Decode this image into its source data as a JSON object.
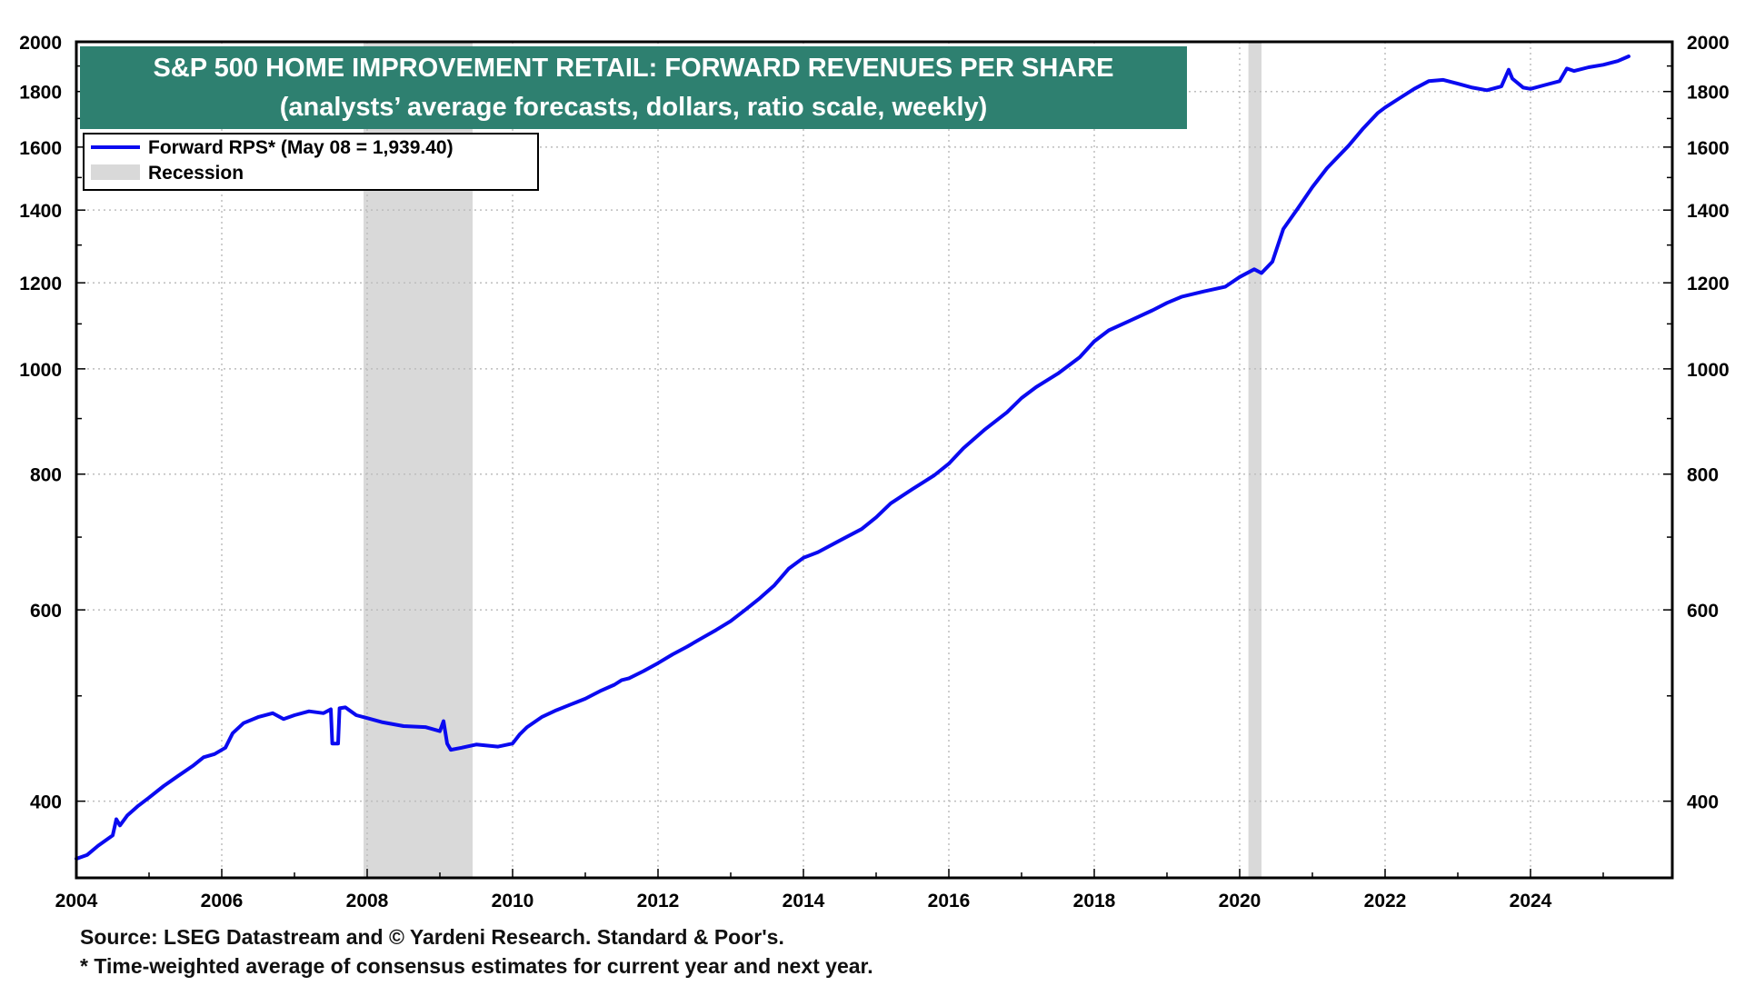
{
  "chart_data": {
    "type": "line",
    "title": "S&P 500 HOME IMPROVEMENT RETAIL: FORWARD REVENUES PER SHARE",
    "subtitle": "(analysts’ average forecasts, dollars, ratio scale, weekly)",
    "y_scale": "log",
    "ylim": [
      340,
      2000
    ],
    "xlim": [
      2004.0,
      2025.95
    ],
    "y_ticks": [
      {
        "value": 400,
        "label": "400"
      },
      {
        "value": 600,
        "label": "600"
      },
      {
        "value": 800,
        "label": "800"
      },
      {
        "value": 1000,
        "label": "1000"
      },
      {
        "value": 1200,
        "label": "1200"
      },
      {
        "value": 1400,
        "label": "1400"
      },
      {
        "value": 1600,
        "label": "1600"
      },
      {
        "value": 1800,
        "label": "1800"
      },
      {
        "value": 2000,
        "label": "2000"
      }
    ],
    "x_ticks": [
      {
        "value": 2004,
        "label": "2004"
      },
      {
        "value": 2006,
        "label": "2006"
      },
      {
        "value": 2008,
        "label": "2008"
      },
      {
        "value": 2010,
        "label": "2010"
      },
      {
        "value": 2012,
        "label": "2012"
      },
      {
        "value": 2014,
        "label": "2014"
      },
      {
        "value": 2016,
        "label": "2016"
      },
      {
        "value": 2018,
        "label": "2018"
      },
      {
        "value": 2020,
        "label": "2020"
      },
      {
        "value": 2022,
        "label": "2022"
      },
      {
        "value": 2024,
        "label": "2024"
      }
    ],
    "recessions": [
      {
        "start": 2007.95,
        "end": 2009.45
      },
      {
        "start": 2020.12,
        "end": 2020.3
      }
    ],
    "legend": [
      {
        "label": "Forward RPS* (May 08 = 1,939.40)",
        "type": "line",
        "color": "#0a0af0"
      },
      {
        "label": "Recession",
        "type": "area",
        "color": "#d9d9d9"
      }
    ],
    "series": [
      {
        "name": "Forward RPS",
        "color": "#0a0af0",
        "x": [
          2004.0,
          2004.15,
          2004.3,
          2004.5,
          2004.55,
          2004.6,
          2004.7,
          2004.85,
          2005.0,
          2005.2,
          2005.4,
          2005.6,
          2005.75,
          2005.9,
          2006.05,
          2006.15,
          2006.3,
          2006.5,
          2006.7,
          2006.85,
          2007.0,
          2007.2,
          2007.4,
          2007.5,
          2007.52,
          2007.6,
          2007.62,
          2007.7,
          2007.85,
          2008.0,
          2008.2,
          2008.5,
          2008.8,
          2009.0,
          2009.05,
          2009.1,
          2009.15,
          2009.3,
          2009.5,
          2009.8,
          2010.0,
          2010.1,
          2010.2,
          2010.4,
          2010.6,
          2010.8,
          2011.0,
          2011.2,
          2011.4,
          2011.5,
          2011.6,
          2011.8,
          2012.0,
          2012.2,
          2012.4,
          2012.6,
          2012.8,
          2013.0,
          2013.2,
          2013.4,
          2013.6,
          2013.8,
          2014.0,
          2014.2,
          2014.5,
          2014.8,
          2015.0,
          2015.2,
          2015.5,
          2015.8,
          2016.0,
          2016.2,
          2016.5,
          2016.8,
          2017.0,
          2017.2,
          2017.5,
          2017.8,
          2018.0,
          2018.2,
          2018.5,
          2018.8,
          2019.0,
          2019.2,
          2019.5,
          2019.8,
          2020.0,
          2020.2,
          2020.3,
          2020.45,
          2020.6,
          2020.8,
          2021.0,
          2021.2,
          2021.5,
          2021.7,
          2021.9,
          2022.0,
          2022.2,
          2022.4,
          2022.6,
          2022.8,
          2023.0,
          2023.2,
          2023.4,
          2023.6,
          2023.7,
          2023.75,
          2023.9,
          2024.0,
          2024.2,
          2024.4,
          2024.5,
          2024.6,
          2024.8,
          2025.0,
          2025.2,
          2025.35
        ],
        "values": [
          354,
          357,
          364,
          372,
          385,
          380,
          388,
          396,
          403,
          413,
          422,
          431,
          439,
          442,
          448,
          462,
          472,
          478,
          482,
          476,
          480,
          484,
          482,
          486,
          452,
          452,
          487,
          488,
          480,
          477,
          473,
          469,
          468,
          464,
          474,
          452,
          446,
          448,
          451,
          449,
          452,
          461,
          468,
          478,
          485,
          491,
          497,
          505,
          512,
          517,
          519,
          527,
          536,
          546,
          555,
          565,
          575,
          586,
          600,
          615,
          632,
          655,
          670,
          678,
          695,
          712,
          730,
          752,
          775,
          798,
          818,
          845,
          880,
          912,
          940,
          962,
          990,
          1025,
          1060,
          1085,
          1108,
          1132,
          1150,
          1165,
          1178,
          1190,
          1215,
          1235,
          1225,
          1255,
          1345,
          1405,
          1470,
          1530,
          1605,
          1665,
          1720,
          1740,
          1775,
          1810,
          1840,
          1845,
          1830,
          1815,
          1805,
          1820,
          1885,
          1850,
          1815,
          1810,
          1825,
          1840,
          1890,
          1880,
          1895,
          1905,
          1920,
          1939.4
        ]
      }
    ],
    "footnotes": [
      "Source: LSEG Datastream and © Yardeni Research. Standard & Poor's.",
      "* Time-weighted average of consensus estimates for current year and next year."
    ]
  }
}
